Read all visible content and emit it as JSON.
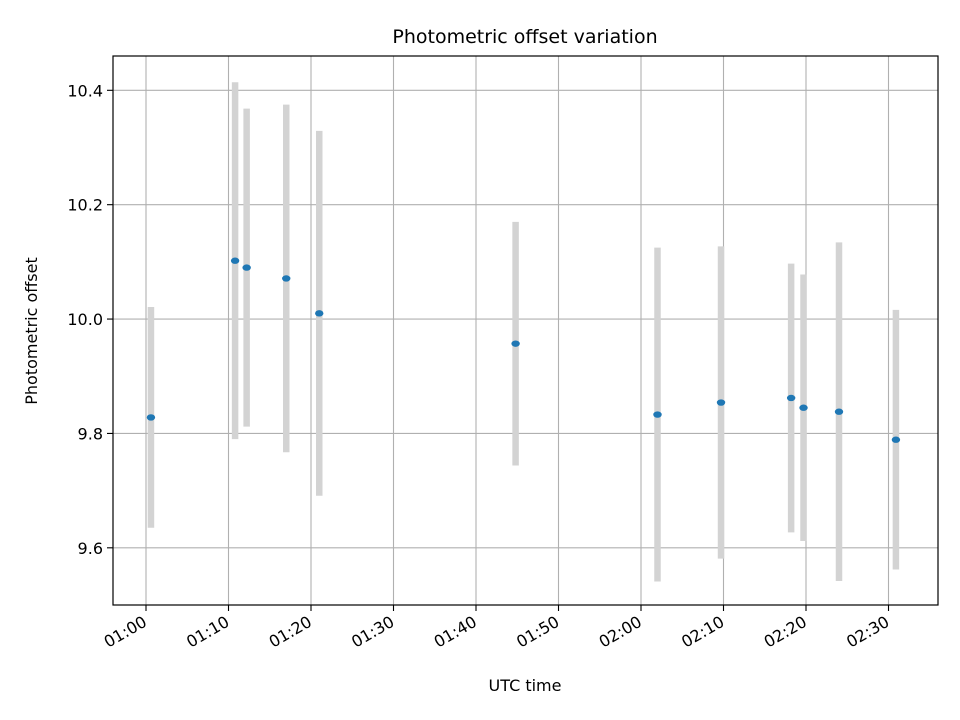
{
  "chart_data": {
    "type": "scatter",
    "title": "Photometric offset variation",
    "xlabel": "UTC time",
    "ylabel": "Photometric offset",
    "x_ticks": [
      "01:00",
      "01:10",
      "01:20",
      "01:30",
      "01:40",
      "01:50",
      "02:00",
      "02:10",
      "02:20",
      "02:30"
    ],
    "y_ticks": [
      "9.6",
      "9.8",
      "10.0",
      "10.2",
      "10.4"
    ],
    "xlim": [
      "00:56",
      "02:36"
    ],
    "ylim": [
      9.5,
      10.46
    ],
    "grid": true,
    "series": [
      {
        "marker_color": "#1f77b4",
        "errorbar_color": "#d3d3d3",
        "points": [
          {
            "x": "01:00:36",
            "y": 9.828,
            "err": 0.193
          },
          {
            "x": "01:10:48",
            "y": 10.102,
            "err": 0.312
          },
          {
            "x": "01:12:12",
            "y": 10.09,
            "err": 0.278
          },
          {
            "x": "01:17:00",
            "y": 10.071,
            "err": 0.304
          },
          {
            "x": "01:21:00",
            "y": 10.01,
            "err": 0.319
          },
          {
            "x": "01:44:48",
            "y": 9.957,
            "err": 0.213
          },
          {
            "x": "02:02:00",
            "y": 9.833,
            "err": 0.292
          },
          {
            "x": "02:09:42",
            "y": 9.854,
            "err": 0.273
          },
          {
            "x": "02:18:12",
            "y": 9.862,
            "err": 0.235
          },
          {
            "x": "02:19:42",
            "y": 9.845,
            "err": 0.233
          },
          {
            "x": "02:24:00",
            "y": 9.838,
            "err": 0.296
          },
          {
            "x": "02:30:54",
            "y": 9.789,
            "err": 0.227
          }
        ]
      }
    ]
  }
}
